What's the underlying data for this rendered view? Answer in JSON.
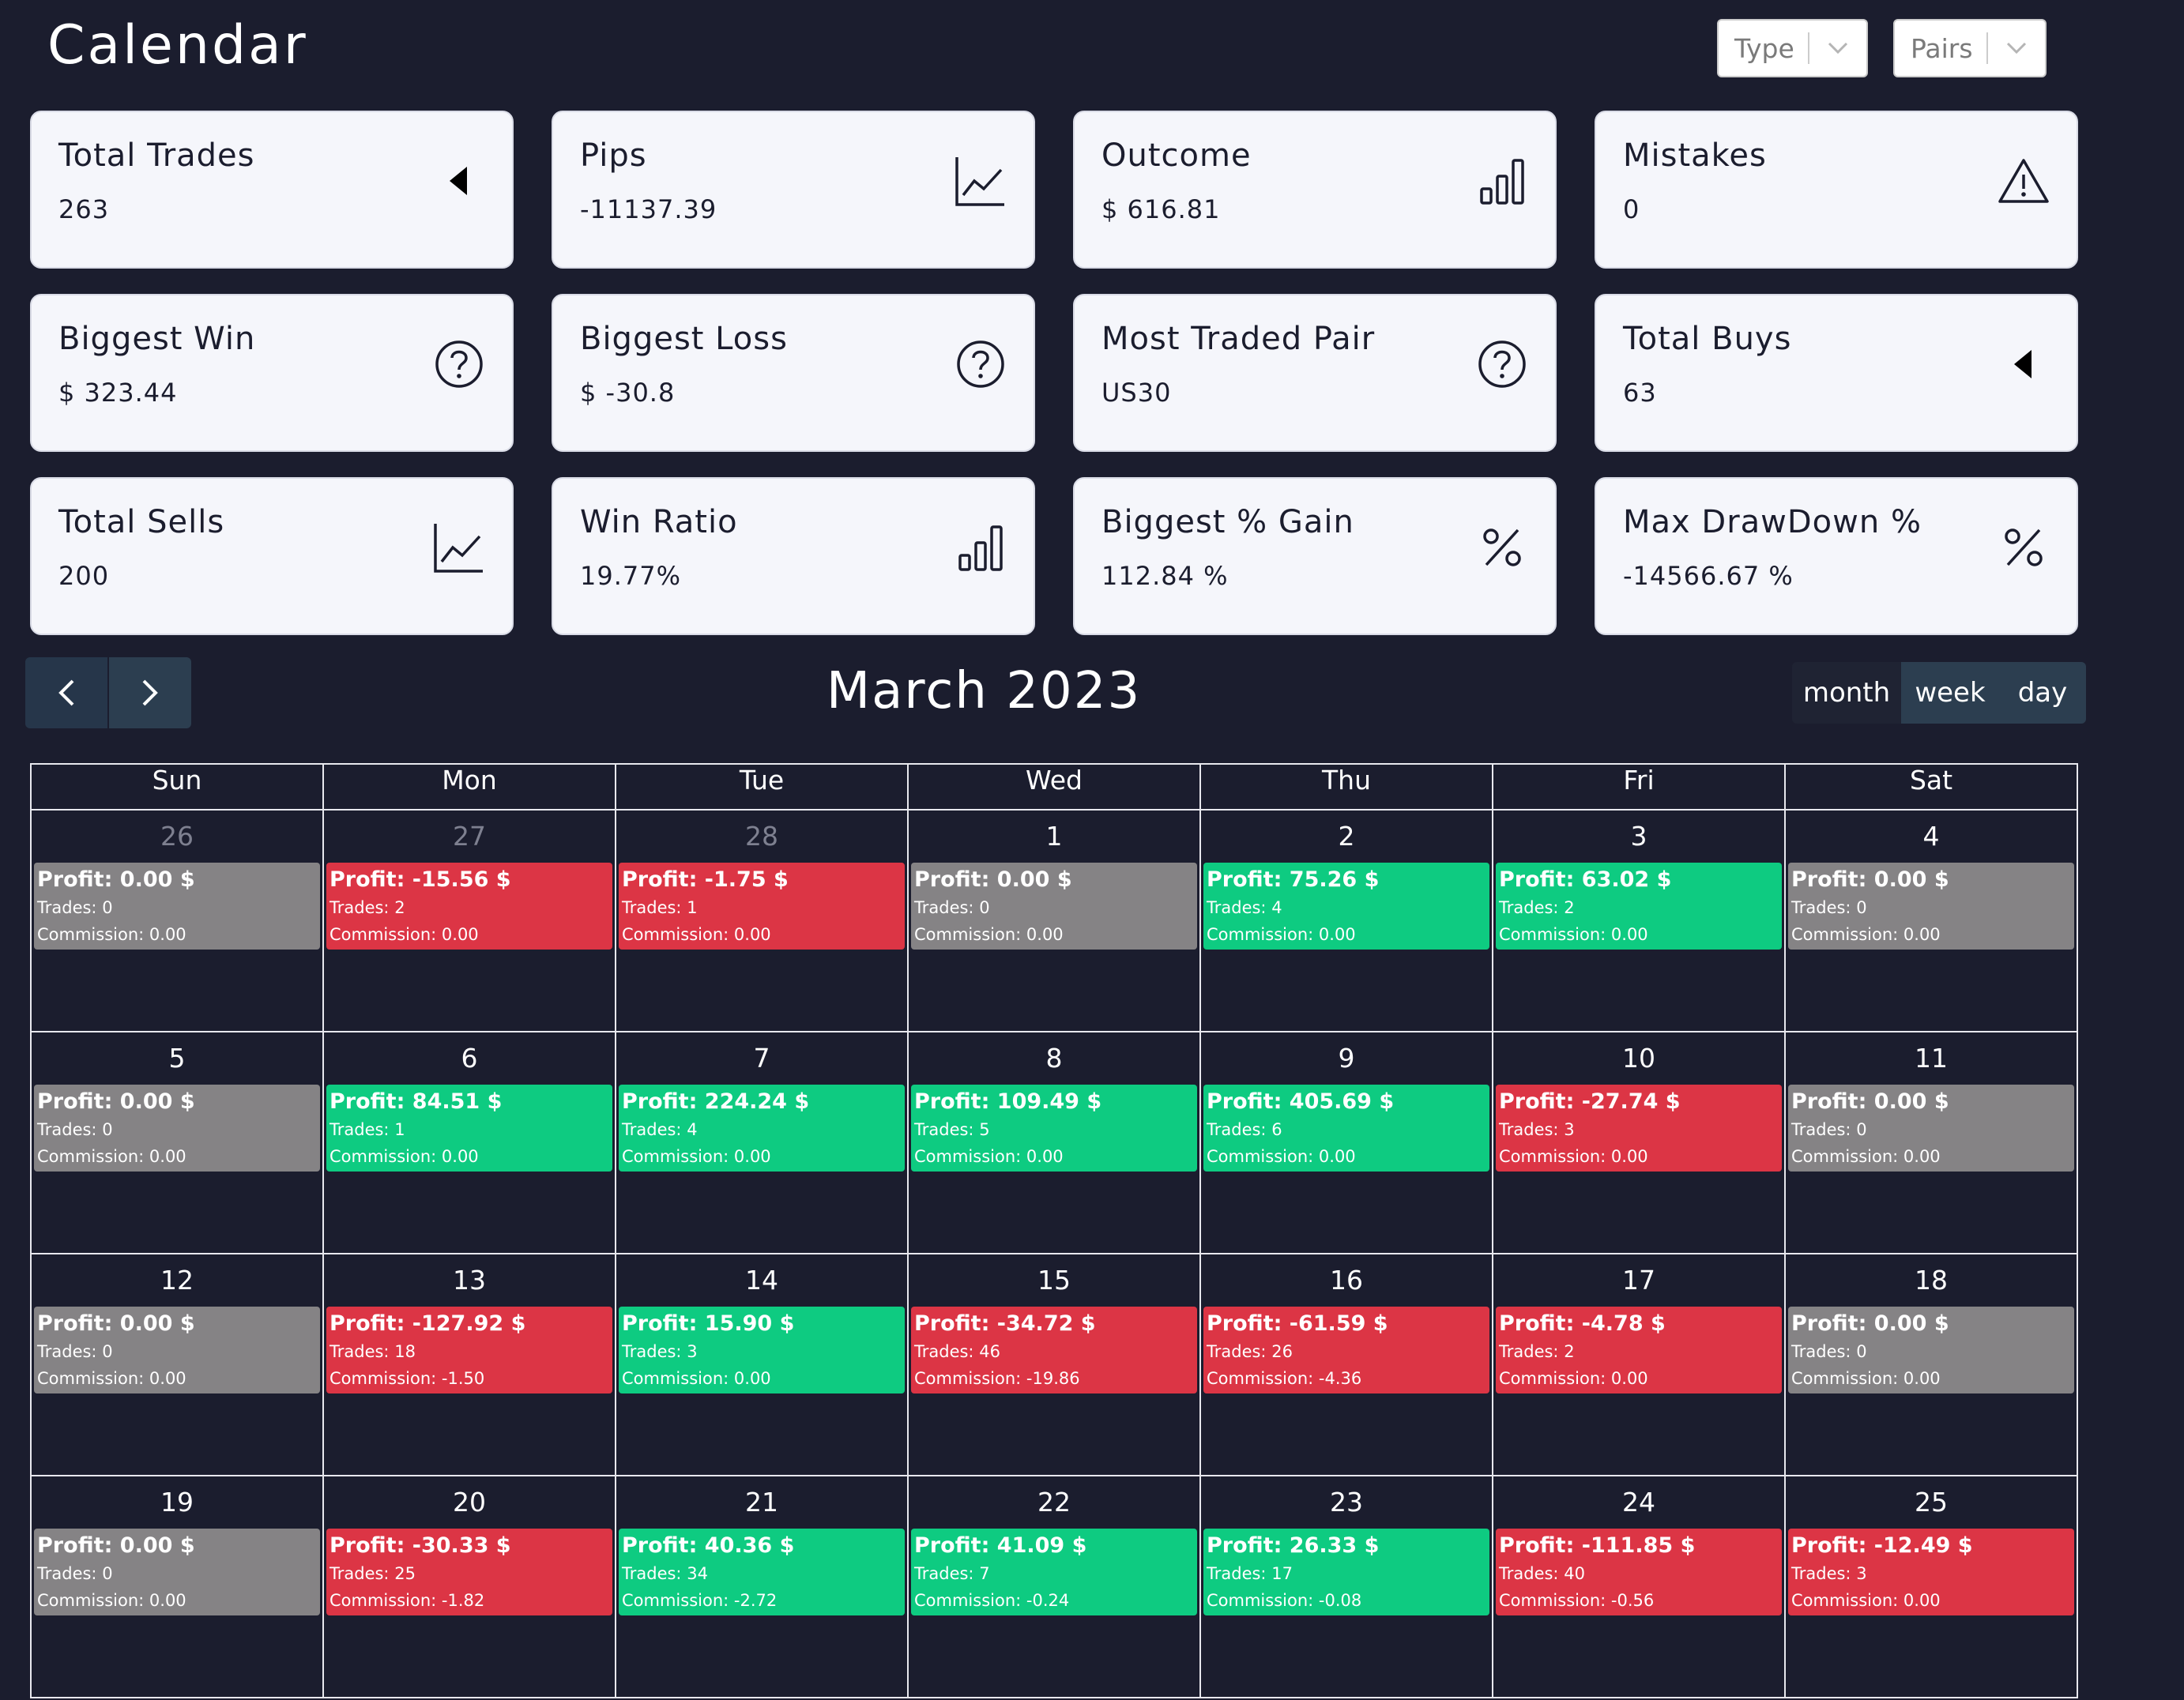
{
  "header": {
    "title": "Calendar"
  },
  "filters": {
    "type_label": "Type",
    "pairs_label": "Pairs"
  },
  "stats": [
    {
      "title": "Total Trades",
      "value": "263",
      "icon": "caret-left-icon"
    },
    {
      "title": "Pips",
      "value": "-11137.39",
      "icon": "line-chart-icon"
    },
    {
      "title": "Outcome",
      "value": "$ 616.81",
      "icon": "bar-chart-icon"
    },
    {
      "title": "Mistakes",
      "value": "0",
      "icon": "warning-icon"
    },
    {
      "title": "Biggest Win",
      "value": "$ 323.44",
      "icon": "question-icon"
    },
    {
      "title": "Biggest Loss",
      "value": "$ -30.8",
      "icon": "question-icon"
    },
    {
      "title": "Most Traded Pair",
      "value": "US30",
      "icon": "question-icon"
    },
    {
      "title": "Total Buys",
      "value": "63",
      "icon": "caret-left-icon"
    },
    {
      "title": "Total Sells",
      "value": "200",
      "icon": "line-chart-icon"
    },
    {
      "title": "Win Ratio",
      "value": "19.77%",
      "icon": "bar-chart-icon"
    },
    {
      "title": "Biggest % Gain",
      "value": "112.84 %",
      "icon": "percent-icon"
    },
    {
      "title": "Max DrawDown %",
      "value": "-14566.67 %",
      "icon": "percent-icon"
    }
  ],
  "calendar": {
    "title": "March 2023",
    "views": {
      "month": "month",
      "week": "week",
      "day": "day"
    },
    "weekdays": [
      "Sun",
      "Mon",
      "Tue",
      "Wed",
      "Thu",
      "Fri",
      "Sat"
    ],
    "labels": {
      "profit": "Profit:",
      "trades": "Trades:",
      "commission": "Commission:",
      "currency": "$"
    },
    "colors": {
      "win": "#0ecb81",
      "loss": "#dc3545",
      "zero": "#858385"
    },
    "weeks": [
      [
        {
          "day": "26",
          "other": true,
          "profit": "0.00",
          "trades": "0",
          "commission": "0.00",
          "status": "zero"
        },
        {
          "day": "27",
          "other": true,
          "profit": "-15.56",
          "trades": "2",
          "commission": "0.00",
          "status": "loss"
        },
        {
          "day": "28",
          "other": true,
          "profit": "-1.75",
          "trades": "1",
          "commission": "0.00",
          "status": "loss"
        },
        {
          "day": "1",
          "profit": "0.00",
          "trades": "0",
          "commission": "0.00",
          "status": "zero"
        },
        {
          "day": "2",
          "profit": "75.26",
          "trades": "4",
          "commission": "0.00",
          "status": "win"
        },
        {
          "day": "3",
          "profit": "63.02",
          "trades": "2",
          "commission": "0.00",
          "status": "win"
        },
        {
          "day": "4",
          "profit": "0.00",
          "trades": "0",
          "commission": "0.00",
          "status": "zero"
        }
      ],
      [
        {
          "day": "5",
          "profit": "0.00",
          "trades": "0",
          "commission": "0.00",
          "status": "zero"
        },
        {
          "day": "6",
          "profit": "84.51",
          "trades": "1",
          "commission": "0.00",
          "status": "win"
        },
        {
          "day": "7",
          "profit": "224.24",
          "trades": "4",
          "commission": "0.00",
          "status": "win"
        },
        {
          "day": "8",
          "profit": "109.49",
          "trades": "5",
          "commission": "0.00",
          "status": "win"
        },
        {
          "day": "9",
          "profit": "405.69",
          "trades": "6",
          "commission": "0.00",
          "status": "win"
        },
        {
          "day": "10",
          "profit": "-27.74",
          "trades": "3",
          "commission": "0.00",
          "status": "loss"
        },
        {
          "day": "11",
          "profit": "0.00",
          "trades": "0",
          "commission": "0.00",
          "status": "zero"
        }
      ],
      [
        {
          "day": "12",
          "profit": "0.00",
          "trades": "0",
          "commission": "0.00",
          "status": "zero"
        },
        {
          "day": "13",
          "profit": "-127.92",
          "trades": "18",
          "commission": "-1.50",
          "status": "loss"
        },
        {
          "day": "14",
          "profit": "15.90",
          "trades": "3",
          "commission": "0.00",
          "status": "win"
        },
        {
          "day": "15",
          "profit": "-34.72",
          "trades": "46",
          "commission": "-19.86",
          "status": "loss"
        },
        {
          "day": "16",
          "profit": "-61.59",
          "trades": "26",
          "commission": "-4.36",
          "status": "loss"
        },
        {
          "day": "17",
          "profit": "-4.78",
          "trades": "2",
          "commission": "0.00",
          "status": "loss"
        },
        {
          "day": "18",
          "profit": "0.00",
          "trades": "0",
          "commission": "0.00",
          "status": "zero"
        }
      ],
      [
        {
          "day": "19",
          "profit": "0.00",
          "trades": "0",
          "commission": "0.00",
          "status": "zero"
        },
        {
          "day": "20",
          "profit": "-30.33",
          "trades": "25",
          "commission": "-1.82",
          "status": "loss"
        },
        {
          "day": "21",
          "profit": "40.36",
          "trades": "34",
          "commission": "-2.72",
          "status": "win"
        },
        {
          "day": "22",
          "profit": "41.09",
          "trades": "7",
          "commission": "-0.24",
          "status": "win"
        },
        {
          "day": "23",
          "profit": "26.33",
          "trades": "17",
          "commission": "-0.08",
          "status": "win"
        },
        {
          "day": "24",
          "profit": "-111.85",
          "trades": "40",
          "commission": "-0.56",
          "status": "loss"
        },
        {
          "day": "25",
          "profit": "-12.49",
          "trades": "3",
          "commission": "0.00",
          "status": "loss"
        }
      ]
    ]
  }
}
